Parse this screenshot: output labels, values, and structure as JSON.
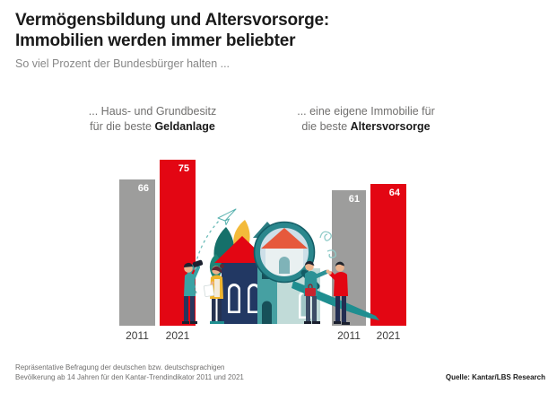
{
  "title": {
    "line1": "Vermögensbildung und Altersvorsorge:",
    "line2": "Immobilien werden immer beliebter"
  },
  "subtitle": "So viel Prozent der Bundesbürger halten ...",
  "panels": [
    {
      "header_line1": "... Haus- und Grundbesitz",
      "header_line2_normal": "für die beste ",
      "header_line2_bold": "Geldanlage",
      "bars": [
        {
          "year": "2011",
          "value": 66
        },
        {
          "year": "2021",
          "value": 75
        }
      ]
    },
    {
      "header_line1": "... eine eigene Immobilie für",
      "header_line2_normal": "die beste ",
      "header_line2_bold": "Altersvorsorge",
      "bars": [
        {
          "year": "2011",
          "value": 61
        },
        {
          "year": "2021",
          "value": 64
        }
      ]
    }
  ],
  "chart_data": {
    "type": "bar",
    "title": "Vermögensbildung und Altersvorsorge: Immobilien werden immer beliebter",
    "subtitle": "So viel Prozent der Bundesbürger halten ...",
    "unit": "percent",
    "categories": [
      "2011",
      "2021"
    ],
    "series": [
      {
        "name": "... Haus- und Grundbesitz für die beste Geldanlage",
        "values": [
          66,
          75
        ]
      },
      {
        "name": "... eine eigene Immobilie für die beste Altersvorsorge",
        "values": [
          61,
          64
        ]
      }
    ],
    "ylim": [
      0,
      100
    ],
    "grid": false,
    "legend_position": "none",
    "value_labels": "inside-top, white bold",
    "bar_colors": {
      "2011": "#9d9d9c",
      "2021": "#e30613"
    }
  },
  "illustration": {
    "icons": [
      "paper-plane-icon",
      "dashed-trail-icon",
      "leaf-icon",
      "house-icon",
      "magnifying-glass-icon",
      "ribbon-swoosh-icon",
      "swirl-doodle-icon",
      "binoculars-icon",
      "documents-icon",
      "briefcase-icon"
    ]
  },
  "footer": {
    "note_line1": "Repräsentative Befragung der deutschen bzw. deutschsprachigen",
    "note_line2": "Bevölkerung ab 14 Jahren für den Kantar-Trendindikator 2011 und 2021",
    "source": "Quelle: Kantar/LBS Research"
  },
  "colors": {
    "red": "#e30613",
    "gray": "#9d9d9c",
    "teal": "#1f8e90",
    "navy": "#223863",
    "yellow": "#f0b42c",
    "title_text": "#1a1a1a",
    "muted_text": "#706f6e"
  }
}
